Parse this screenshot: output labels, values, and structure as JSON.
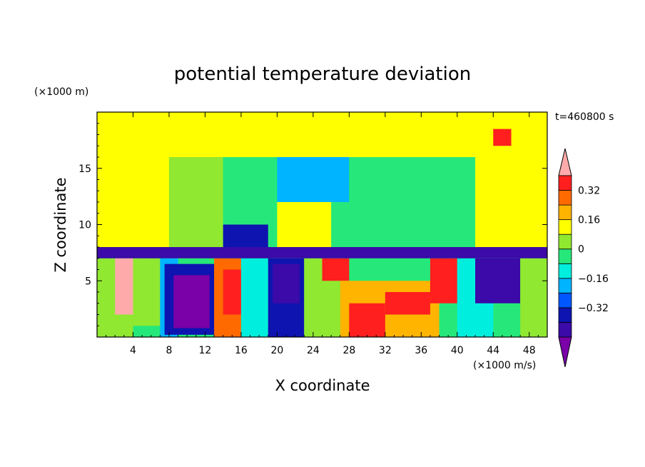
{
  "chart_data": {
    "type": "heatmap",
    "title": "potential temperature deviation",
    "xlabel": "X coordinate",
    "ylabel": "Z coordinate",
    "x_unit": "(×1000 m/s)",
    "y_unit": "(×1000 m)",
    "time_label": "t=460800 s",
    "xlim": [
      0,
      50
    ],
    "ylim": [
      0,
      20
    ],
    "x_ticks": [
      4,
      8,
      12,
      16,
      20,
      24,
      28,
      32,
      36,
      40,
      44,
      48
    ],
    "y_ticks": [
      5,
      10,
      15
    ],
    "colorbar": {
      "levels": [
        -0.48,
        -0.4,
        -0.32,
        -0.24,
        -0.16,
        -0.08,
        0,
        0.08,
        0.16,
        0.24,
        0.32,
        0.4,
        0.48
      ],
      "tick_labels": [
        "0.32",
        "0.16",
        "0",
        "−0.16",
        "−0.32"
      ],
      "tick_values": [
        0.32,
        0.16,
        0,
        -0.16,
        -0.32
      ],
      "colors": [
        "#7a00a8",
        "#3b0aa8",
        "#0e14b0",
        "#0057ff",
        "#00b4ff",
        "#00eedd",
        "#26e87a",
        "#90e830",
        "#ffff00",
        "#ffb400",
        "#ff6a00",
        "#ff1f1f",
        "#ffaaaa"
      ]
    },
    "cells": [
      {
        "x": [
          0,
          4
        ],
        "z": [
          0,
          7
        ],
        "v": 0.08
      },
      {
        "x": [
          2,
          5
        ],
        "z": [
          2,
          7
        ],
        "v": 0.5
      },
      {
        "x": [
          4,
          7
        ],
        "z": [
          1,
          7
        ],
        "v": 0.08
      },
      {
        "x": [
          7,
          9
        ],
        "z": [
          0,
          7
        ],
        "v": -0.1
      },
      {
        "x": [
          7.5,
          13.5
        ],
        "z": [
          0.2,
          6.5
        ],
        "v": -0.3
      },
      {
        "x": [
          8.5,
          12.5
        ],
        "z": [
          0.8,
          5.5
        ],
        "v": -0.45
      },
      {
        "x": [
          13,
          16
        ],
        "z": [
          0,
          7
        ],
        "v": 0.32
      },
      {
        "x": [
          14,
          16
        ],
        "z": [
          2,
          6
        ],
        "v": 0.45
      },
      {
        "x": [
          16,
          19
        ],
        "z": [
          0,
          7
        ],
        "v": -0.05
      },
      {
        "x": [
          19,
          23
        ],
        "z": [
          0,
          7
        ],
        "v": -0.25
      },
      {
        "x": [
          19.5,
          22.5
        ],
        "z": [
          3,
          6.5
        ],
        "v": -0.4
      },
      {
        "x": [
          23,
          27
        ],
        "z": [
          0,
          7
        ],
        "v": 0.1
      },
      {
        "x": [
          25,
          28
        ],
        "z": [
          5,
          7
        ],
        "v": 0.45
      },
      {
        "x": [
          27,
          38
        ],
        "z": [
          0,
          5
        ],
        "v": 0.3
      },
      {
        "x": [
          28,
          32
        ],
        "z": [
          0,
          3
        ],
        "v": 0.45
      },
      {
        "x": [
          32,
          37
        ],
        "z": [
          2,
          4
        ],
        "v": 0.45
      },
      {
        "x": [
          37,
          40
        ],
        "z": [
          3,
          7
        ],
        "v": 0.45
      },
      {
        "x": [
          40,
          44
        ],
        "z": [
          0,
          7
        ],
        "v": -0.05
      },
      {
        "x": [
          42,
          47
        ],
        "z": [
          3,
          7
        ],
        "v": -0.4
      },
      {
        "x": [
          47,
          50
        ],
        "z": [
          0,
          7
        ],
        "v": 0.08
      },
      {
        "x": [
          0,
          50
        ],
        "z": [
          7,
          8
        ],
        "v": -0.35
      },
      {
        "x": [
          0,
          8
        ],
        "z": [
          8,
          16
        ],
        "v": 0.16
      },
      {
        "x": [
          8,
          14
        ],
        "z": [
          8,
          16
        ],
        "v": 0.08
      },
      {
        "x": [
          14,
          19
        ],
        "z": [
          8,
          10
        ],
        "v": -0.3
      },
      {
        "x": [
          14,
          20
        ],
        "z": [
          10,
          17
        ],
        "v": 0.0
      },
      {
        "x": [
          20,
          26
        ],
        "z": [
          8,
          12
        ],
        "v": 0.2
      },
      {
        "x": [
          20,
          28
        ],
        "z": [
          12,
          20
        ],
        "v": -0.12
      },
      {
        "x": [
          24,
          28
        ],
        "z": [
          16,
          20
        ],
        "v": -0.25
      },
      {
        "x": [
          28,
          38
        ],
        "z": [
          8,
          18
        ],
        "v": 0.05
      },
      {
        "x": [
          38,
          42
        ],
        "z": [
          8,
          16
        ],
        "v": 0.0
      },
      {
        "x": [
          42,
          50
        ],
        "z": [
          8,
          16
        ],
        "v": 0.16
      },
      {
        "x": [
          0,
          50
        ],
        "z": [
          16,
          20
        ],
        "v": 0.18
      },
      {
        "x": [
          44,
          46
        ],
        "z": [
          17,
          18.5
        ],
        "v": 0.45
      }
    ]
  }
}
